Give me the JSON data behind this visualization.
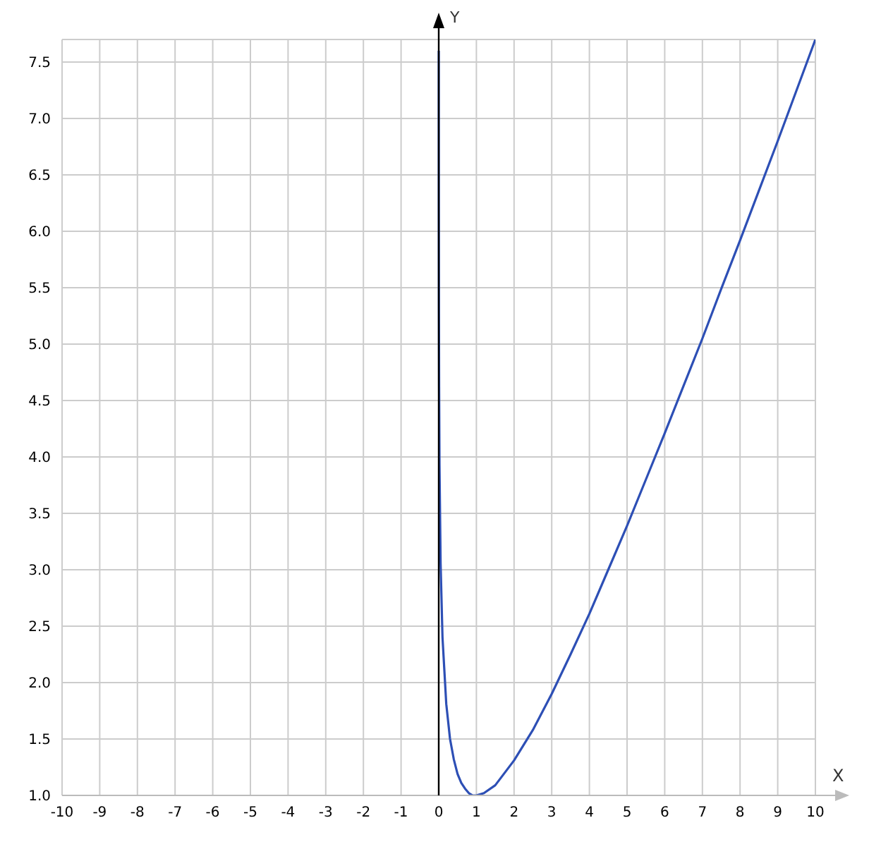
{
  "chart_data": {
    "type": "line",
    "xlabel": "X",
    "ylabel": "Y",
    "xlim": [
      -10,
      10
    ],
    "xticks": [
      -10,
      -9,
      -8,
      -7,
      -6,
      -5,
      -4,
      -3,
      -2,
      -1,
      0,
      1,
      2,
      3,
      4,
      5,
      6,
      7,
      8,
      9,
      10
    ],
    "ylim": [
      1,
      7.7
    ],
    "yticks": [
      {
        "value": 1,
        "label": "1.0"
      },
      {
        "value": 1.5,
        "label": "1.5"
      },
      {
        "value": 2,
        "label": "2.0"
      },
      {
        "value": 2.5,
        "label": "2.5"
      },
      {
        "value": 3,
        "label": "3.0"
      },
      {
        "value": 3.5,
        "label": "3.5"
      },
      {
        "value": 4,
        "label": "4.0"
      },
      {
        "value": 4.5,
        "label": "4.5"
      },
      {
        "value": 5,
        "label": "5.0"
      },
      {
        "value": 5.5,
        "label": "5.5"
      },
      {
        "value": 6,
        "label": "6.0"
      },
      {
        "value": 6.5,
        "label": "6.5"
      },
      {
        "value": 7,
        "label": "7.0"
      },
      {
        "value": 7.5,
        "label": "7.5"
      }
    ],
    "grid": true,
    "marker": "none",
    "line_style": "solid",
    "series": [
      {
        "color": "#2d4fb5",
        "x": [
          0.0005,
          0.001,
          0.002,
          0.005,
          0.01,
          0.02,
          0.05,
          0.1,
          0.2,
          0.3,
          0.4,
          0.5,
          0.6,
          0.7,
          0.8,
          0.9,
          1,
          1.2,
          1.5,
          2,
          2.5,
          3,
          3.5,
          4,
          4.5,
          5,
          5.5,
          6,
          6.5,
          7,
          7.5,
          8,
          8.5,
          9,
          9.5,
          10
        ],
        "values": [
          7.6,
          6.91,
          6.22,
          5.3,
          4.62,
          3.93,
          3.05,
          2.4,
          1.81,
          1.5,
          1.32,
          1.19,
          1.11,
          1.06,
          1.02,
          1.0,
          1.0,
          1.02,
          1.09,
          1.31,
          1.58,
          1.9,
          2.25,
          2.61,
          3.0,
          3.39,
          3.8,
          4.21,
          4.63,
          5.05,
          5.49,
          5.92,
          6.36,
          6.8,
          7.25,
          7.7
        ]
      }
    ]
  }
}
